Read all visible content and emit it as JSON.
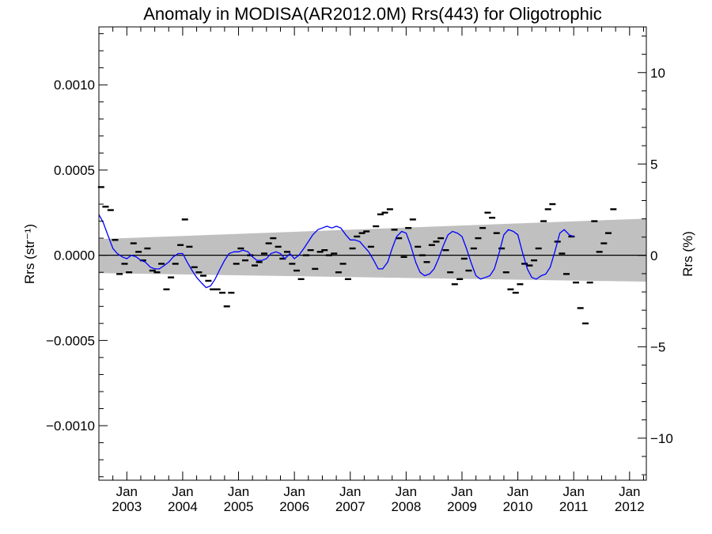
{
  "chart_data": {
    "type": "line",
    "title": "Anomaly in MODISA(AR2012.0M) Rrs(443) for Oligotrophic",
    "ylabel_left": "Rrs (str⁻¹)",
    "ylabel_right": "Rrs (%)",
    "xlim": [
      2002.5,
      2012.3
    ],
    "ylim_left": [
      -0.00132,
      0.00134
    ],
    "ylim_right": [
      -12.3,
      12.5
    ],
    "yticks_left": [
      {
        "value": 0.001,
        "label": "0.0010"
      },
      {
        "value": 0.0005,
        "label": "0.0005"
      },
      {
        "value": 0.0,
        "label": "0.0000"
      },
      {
        "value": -0.0005,
        "label": "−0.0005"
      },
      {
        "value": -0.001,
        "label": "−0.0010"
      }
    ],
    "yticks_right": [
      {
        "value": 10,
        "label": "10"
      },
      {
        "value": 5,
        "label": "5"
      },
      {
        "value": 0,
        "label": "0"
      },
      {
        "value": -5,
        "label": "−5"
      },
      {
        "value": -10,
        "label": "−10"
      }
    ],
    "xticks": [
      {
        "value": 2003.0,
        "month": "Jan",
        "year": "2003"
      },
      {
        "value": 2004.0,
        "month": "Jan",
        "year": "2004"
      },
      {
        "value": 2005.0,
        "month": "Jan",
        "year": "2005"
      },
      {
        "value": 2006.0,
        "month": "Jan",
        "year": "2006"
      },
      {
        "value": 2007.0,
        "month": "Jan",
        "year": "2007"
      },
      {
        "value": 2008.0,
        "month": "Jan",
        "year": "2008"
      },
      {
        "value": 2009.0,
        "month": "Jan",
        "year": "2009"
      },
      {
        "value": 2010.0,
        "month": "Jan",
        "year": "2010"
      },
      {
        "value": 2011.0,
        "month": "Jan",
        "year": "2011"
      },
      {
        "value": 2012.0,
        "month": "Jan",
        "year": "2012"
      }
    ],
    "uncertainty_band": {
      "color": "#c0c0c0",
      "upper": [
        [
          2002.5,
          9.5e-05
        ],
        [
          2012.3,
          0.000215
        ]
      ],
      "lower": [
        [
          2002.5,
          -0.000105
        ],
        [
          2012.3,
          -0.000155
        ]
      ]
    },
    "zero_line": 0.0,
    "series": [
      {
        "style": "markers",
        "color": "#000000",
        "points": [
          [
            2002.54,
            0.0004
          ],
          [
            2002.62,
            0.000285
          ],
          [
            2002.71,
            0.000265
          ],
          [
            2002.79,
            9e-05
          ],
          [
            2002.87,
            -0.00011
          ],
          [
            2002.96,
            -5e-05
          ],
          [
            2003.04,
            -0.0001
          ],
          [
            2003.12,
            7e-05
          ],
          [
            2003.21,
            2e-05
          ],
          [
            2003.29,
            -3e-05
          ],
          [
            2003.37,
            4e-05
          ],
          [
            2003.46,
            -9e-05
          ],
          [
            2003.54,
            -0.0001
          ],
          [
            2003.62,
            -5e-05
          ],
          [
            2003.71,
            -0.0002
          ],
          [
            2003.79,
            -0.00013
          ],
          [
            2003.87,
            -5e-05
          ],
          [
            2003.96,
            6e-05
          ],
          [
            2004.04,
            0.00021
          ],
          [
            2004.12,
            5e-05
          ],
          [
            2004.21,
            -7e-05
          ],
          [
            2004.29,
            -0.0001
          ],
          [
            2004.37,
            -0.00012
          ],
          [
            2004.46,
            -0.00015
          ],
          [
            2004.54,
            -0.0002
          ],
          [
            2004.62,
            -0.0002
          ],
          [
            2004.71,
            -0.00022
          ],
          [
            2004.79,
            -0.0003
          ],
          [
            2004.87,
            -0.00022
          ],
          [
            2004.96,
            -5e-05
          ],
          [
            2005.04,
            4e-05
          ],
          [
            2005.12,
            -3e-05
          ],
          [
            2005.21,
            0.0
          ],
          [
            2005.29,
            -6e-05
          ],
          [
            2005.37,
            -4e-05
          ],
          [
            2005.46,
            1e-05
          ],
          [
            2005.54,
            7e-05
          ],
          [
            2005.62,
            0.0001
          ],
          [
            2005.71,
            5e-05
          ],
          [
            2005.79,
            -2e-05
          ],
          [
            2005.87,
            2e-05
          ],
          [
            2005.96,
            -5e-05
          ],
          [
            2006.04,
            -9e-05
          ],
          [
            2006.12,
            -0.00014
          ],
          [
            2006.21,
            0.0
          ],
          [
            2006.29,
            3e-05
          ],
          [
            2006.37,
            -8e-05
          ],
          [
            2006.46,
            2e-05
          ],
          [
            2006.54,
            3e-05
          ],
          [
            2006.62,
            0.0
          ],
          [
            2006.71,
            1e-05
          ],
          [
            2006.79,
            -0.0001
          ],
          [
            2006.87,
            -5e-05
          ],
          [
            2006.96,
            -0.00014
          ],
          [
            2007.04,
            4e-05
          ],
          [
            2007.12,
            0.00011
          ],
          [
            2007.21,
            0.00013
          ],
          [
            2007.29,
            0.00014
          ],
          [
            2007.37,
            5e-05
          ],
          [
            2007.46,
            0.00017
          ],
          [
            2007.54,
            0.00024
          ],
          [
            2007.62,
            0.00025
          ],
          [
            2007.71,
            0.00027
          ],
          [
            2007.79,
            0.00015
          ],
          [
            2007.87,
            0.0001
          ],
          [
            2007.96,
            -1e-05
          ],
          [
            2008.04,
            0.00016
          ],
          [
            2008.12,
            0.00021
          ],
          [
            2008.21,
            5e-05
          ],
          [
            2008.29,
            0.0
          ],
          [
            2008.37,
            -4e-05
          ],
          [
            2008.46,
            6e-05
          ],
          [
            2008.54,
            8e-05
          ],
          [
            2008.62,
            0.0001
          ],
          [
            2008.71,
            3e-05
          ],
          [
            2008.79,
            -0.0001
          ],
          [
            2008.87,
            -0.00017
          ],
          [
            2008.96,
            -0.00014
          ],
          [
            2009.04,
            -2e-05
          ],
          [
            2009.12,
            -9e-05
          ],
          [
            2009.21,
            4e-05
          ],
          [
            2009.29,
            0.0001
          ],
          [
            2009.37,
            0.00016
          ],
          [
            2009.46,
            0.00025
          ],
          [
            2009.54,
            0.00022
          ],
          [
            2009.62,
            0.00013
          ],
          [
            2009.71,
            4e-05
          ],
          [
            2009.79,
            -0.0001
          ],
          [
            2009.87,
            -0.0002
          ],
          [
            2009.96,
            -0.00022
          ],
          [
            2010.04,
            -0.00017
          ],
          [
            2010.12,
            -5e-05
          ],
          [
            2010.21,
            -6e-05
          ],
          [
            2010.29,
            -3e-05
          ],
          [
            2010.37,
            4e-05
          ],
          [
            2010.46,
            0.0002
          ],
          [
            2010.54,
            0.00027
          ],
          [
            2010.62,
            0.0003
          ],
          [
            2010.71,
            8e-05
          ],
          [
            2010.79,
            1e-05
          ],
          [
            2010.87,
            -0.00011
          ],
          [
            2010.96,
            0.00011
          ],
          [
            2011.04,
            -0.00016
          ],
          [
            2011.12,
            -0.00031
          ],
          [
            2011.21,
            -0.0004
          ],
          [
            2011.29,
            -0.00016
          ],
          [
            2011.37,
            0.0002
          ],
          [
            2011.46,
            2e-05
          ],
          [
            2011.54,
            7e-05
          ],
          [
            2011.62,
            0.00013
          ],
          [
            2011.71,
            0.00027
          ]
        ]
      },
      {
        "style": "line",
        "color": "#0000ff",
        "points": [
          [
            2002.5,
            0.00024
          ],
          [
            2002.58,
            0.00019
          ],
          [
            2002.67,
            0.00011
          ],
          [
            2002.75,
            4e-05
          ],
          [
            2002.83,
            1e-05
          ],
          [
            2002.92,
            -1e-05
          ],
          [
            2003.0,
            -2e-05
          ],
          [
            2003.08,
            0.0
          ],
          [
            2003.17,
            -1e-05
          ],
          [
            2003.25,
            -3e-05
          ],
          [
            2003.33,
            -4e-05
          ],
          [
            2003.42,
            -7e-05
          ],
          [
            2003.5,
            -8e-05
          ],
          [
            2003.58,
            -8e-05
          ],
          [
            2003.67,
            -6e-05
          ],
          [
            2003.75,
            -4e-05
          ],
          [
            2003.83,
            -1e-05
          ],
          [
            2003.92,
            1e-05
          ],
          [
            2004.0,
            1e-05
          ],
          [
            2004.08,
            -4e-05
          ],
          [
            2004.17,
            -9e-05
          ],
          [
            2004.25,
            -0.00013
          ],
          [
            2004.33,
            -0.00016
          ],
          [
            2004.42,
            -0.00019
          ],
          [
            2004.5,
            -0.00018
          ],
          [
            2004.58,
            -0.00014
          ],
          [
            2004.67,
            -8e-05
          ],
          [
            2004.75,
            -3e-05
          ],
          [
            2004.83,
            1e-05
          ],
          [
            2004.92,
            2e-05
          ],
          [
            2005.0,
            2e-05
          ],
          [
            2005.08,
            3e-05
          ],
          [
            2005.17,
            2e-05
          ],
          [
            2005.25,
            -1e-05
          ],
          [
            2005.33,
            -3e-05
          ],
          [
            2005.42,
            -3e-05
          ],
          [
            2005.5,
            -2e-05
          ],
          [
            2005.58,
            1e-05
          ],
          [
            2005.67,
            2e-05
          ],
          [
            2005.75,
            1e-05
          ],
          [
            2005.83,
            -2e-05
          ],
          [
            2005.92,
            1e-05
          ],
          [
            2006.0,
            -2e-05
          ],
          [
            2006.08,
            0.0
          ],
          [
            2006.17,
            4e-05
          ],
          [
            2006.25,
            8e-05
          ],
          [
            2006.33,
            0.00012
          ],
          [
            2006.42,
            0.00015
          ],
          [
            2006.5,
            0.00016
          ],
          [
            2006.58,
            0.00017
          ],
          [
            2006.67,
            0.00016
          ],
          [
            2006.75,
            0.00017
          ],
          [
            2006.83,
            0.00016
          ],
          [
            2006.92,
            0.00012
          ],
          [
            2007.0,
            9e-05
          ],
          [
            2007.08,
            9e-05
          ],
          [
            2007.17,
            8e-05
          ],
          [
            2007.25,
            5e-05
          ],
          [
            2007.33,
            2e-05
          ],
          [
            2007.42,
            -3e-05
          ],
          [
            2007.5,
            -8e-05
          ],
          [
            2007.58,
            -8e-05
          ],
          [
            2007.67,
            -4e-05
          ],
          [
            2007.75,
            4e-05
          ],
          [
            2007.83,
            0.00011
          ],
          [
            2007.92,
            0.00014
          ],
          [
            2008.0,
            0.00013
          ],
          [
            2008.08,
            6e-05
          ],
          [
            2008.17,
            -4e-05
          ],
          [
            2008.25,
            -0.0001
          ],
          [
            2008.33,
            -0.00012
          ],
          [
            2008.42,
            -0.00011
          ],
          [
            2008.5,
            -8e-05
          ],
          [
            2008.58,
            -2e-05
          ],
          [
            2008.67,
            6e-05
          ],
          [
            2008.75,
            0.00012
          ],
          [
            2008.83,
            0.00014
          ],
          [
            2008.92,
            0.00013
          ],
          [
            2009.0,
            0.00011
          ],
          [
            2009.08,
            4e-05
          ],
          [
            2009.17,
            -5e-05
          ],
          [
            2009.25,
            -0.00012
          ],
          [
            2009.33,
            -0.00014
          ],
          [
            2009.42,
            -0.00013
          ],
          [
            2009.5,
            -0.00012
          ],
          [
            2009.58,
            -8e-05
          ],
          [
            2009.67,
            2e-05
          ],
          [
            2009.75,
            0.00012
          ],
          [
            2009.83,
            0.00015
          ],
          [
            2009.92,
            0.00014
          ],
          [
            2010.0,
            0.00012
          ],
          [
            2010.08,
            2e-05
          ],
          [
            2010.17,
            -8e-05
          ],
          [
            2010.25,
            -0.00013
          ],
          [
            2010.33,
            -0.00014
          ],
          [
            2010.42,
            -0.00012
          ],
          [
            2010.5,
            -0.00011
          ],
          [
            2010.58,
            -7e-05
          ],
          [
            2010.67,
            3e-05
          ],
          [
            2010.75,
            0.00013
          ],
          [
            2010.83,
            0.00015
          ],
          [
            2010.92,
            0.00012
          ],
          [
            2011.0,
            0.00011
          ]
        ]
      }
    ]
  }
}
